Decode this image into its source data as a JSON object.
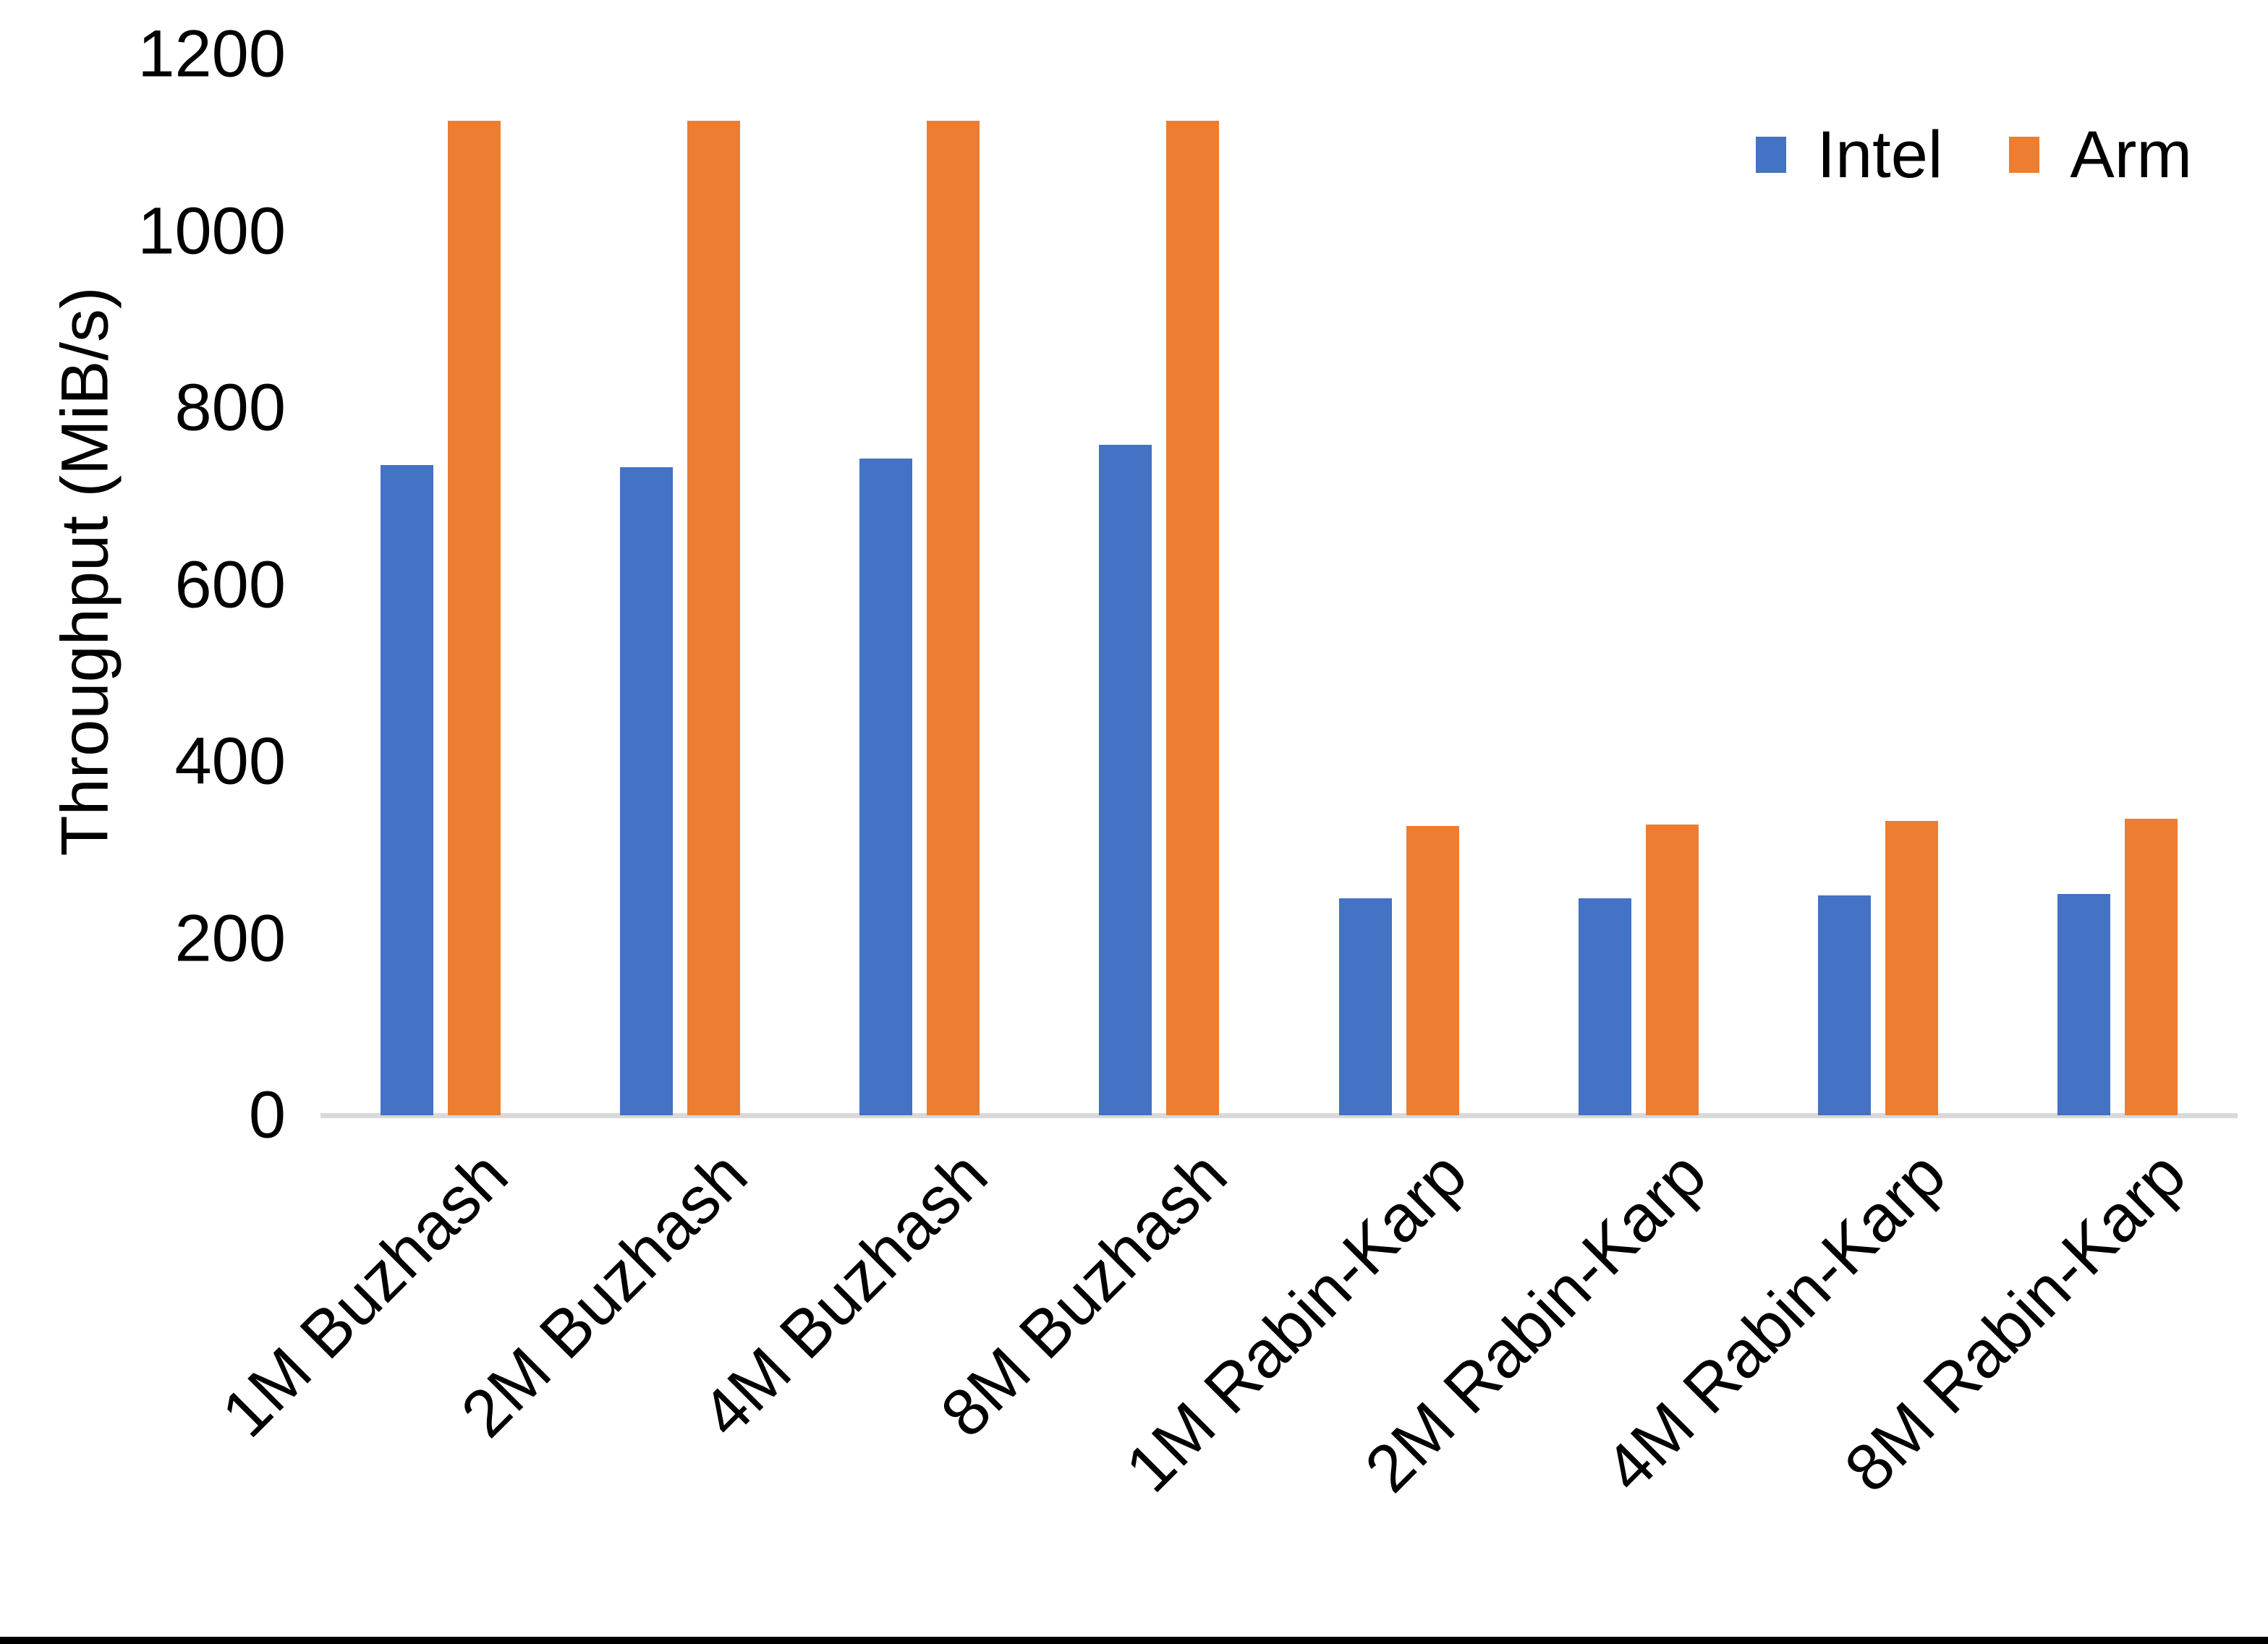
{
  "chart_data": {
    "type": "bar",
    "title": "",
    "xlabel": "",
    "ylabel": "Throughput (MiB/s)",
    "ylim": [
      0,
      1200
    ],
    "yticks": [
      0,
      200,
      400,
      600,
      800,
      1000,
      1200
    ],
    "categories": [
      "1M Buzhash",
      "2M Buzhash",
      "4M Buzhash",
      "8M Buzhash",
      "1M Rabin-Karp",
      "2M Rabin-Karp",
      "4M Rabin-Karp",
      "8M Rabin-Karp"
    ],
    "series": [
      {
        "name": "Intel",
        "color": "#4472C4",
        "values": [
          735,
          733,
          743,
          758,
          245,
          245,
          249,
          250
        ]
      },
      {
        "name": "Arm",
        "color": "#ED7D31",
        "values": [
          1125,
          1125,
          1125,
          1125,
          327,
          329,
          333,
          335
        ]
      }
    ],
    "legend_position": "top-right",
    "grid": false,
    "colors": {
      "axis_line": "#D9D9D9",
      "text": "#000000",
      "background": "#FFFFFF",
      "bottom_border": "#000000"
    }
  }
}
